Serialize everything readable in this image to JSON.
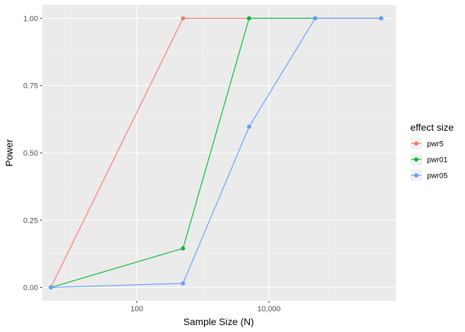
{
  "chart_data": {
    "type": "line",
    "xlabel": "Sample Size (N)",
    "ylabel": "Power",
    "x_scale": "log10",
    "x": [
      5,
      500,
      5000,
      50000,
      500000
    ],
    "xlim": [
      3.7,
      830000
    ],
    "ylim": [
      -0.05,
      1.05
    ],
    "x_ticks": [
      {
        "value": 100,
        "label": "100"
      },
      {
        "value": 10000,
        "label": "10,000"
      }
    ],
    "y_ticks": [
      {
        "value": 0.0,
        "label": "0.00"
      },
      {
        "value": 0.25,
        "label": "0.25"
      },
      {
        "value": 0.5,
        "label": "0.50"
      },
      {
        "value": 0.75,
        "label": "0.75"
      },
      {
        "value": 1.0,
        "label": "1.00"
      }
    ],
    "grid": true,
    "legend_position": "right",
    "legend_title": "effect size",
    "series": [
      {
        "name": "pwr5",
        "color": "#F8766D",
        "values": [
          0.0,
          1.0,
          1.0,
          1.0,
          1.0
        ]
      },
      {
        "name": "pwr01",
        "color": "#00BA38",
        "values": [
          0.0,
          0.145,
          1.0,
          1.0,
          1.0
        ]
      },
      {
        "name": "pwr05",
        "color": "#619CFF",
        "values": [
          0.0,
          0.015,
          0.597,
          1.0,
          1.0
        ]
      }
    ]
  }
}
